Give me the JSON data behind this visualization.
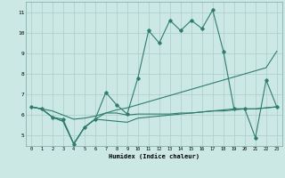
{
  "xlabel": "Humidex (Indice chaleur)",
  "x": [
    0,
    1,
    2,
    3,
    4,
    5,
    6,
    7,
    8,
    9,
    10,
    11,
    12,
    13,
    14,
    15,
    16,
    17,
    18,
    19,
    20,
    21,
    22,
    23
  ],
  "line1": [
    6.4,
    6.3,
    5.9,
    5.8,
    4.6,
    5.4,
    5.8,
    7.1,
    6.5,
    6.05,
    7.8,
    10.1,
    9.5,
    10.6,
    10.1,
    10.6,
    10.2,
    11.1,
    9.1,
    6.3,
    6.3,
    4.9,
    7.7,
    6.4
  ],
  "line2": [
    6.4,
    6.3,
    5.9,
    5.7,
    4.6,
    5.4,
    5.8,
    6.1,
    6.1,
    6.0,
    6.05,
    6.05,
    6.05,
    6.05,
    6.1,
    6.1,
    6.15,
    6.2,
    6.2,
    6.25,
    6.3,
    6.3,
    6.35,
    6.4
  ],
  "line3": [
    6.4,
    6.3,
    6.2,
    6.0,
    5.8,
    5.85,
    5.95,
    6.1,
    6.25,
    6.35,
    6.5,
    6.65,
    6.8,
    6.95,
    7.1,
    7.25,
    7.4,
    7.55,
    7.7,
    7.85,
    8.0,
    8.15,
    8.3,
    9.1
  ],
  "line4": [
    6.4,
    6.3,
    5.9,
    5.7,
    4.6,
    5.4,
    5.8,
    5.75,
    5.7,
    5.65,
    5.85,
    5.9,
    5.95,
    6.0,
    6.05,
    6.1,
    6.15,
    6.2,
    6.25,
    6.3,
    6.3,
    6.3,
    6.35,
    6.4
  ],
  "ylim": [
    4.5,
    11.5
  ],
  "yticks": [
    5,
    6,
    7,
    8,
    9,
    10,
    11
  ],
  "xlim": [
    -0.5,
    23.5
  ],
  "color": "#2e7d6e",
  "bg_color": "#cce8e4",
  "grid_color": "#aaccc8",
  "bottom_bg": "#5a7a78"
}
